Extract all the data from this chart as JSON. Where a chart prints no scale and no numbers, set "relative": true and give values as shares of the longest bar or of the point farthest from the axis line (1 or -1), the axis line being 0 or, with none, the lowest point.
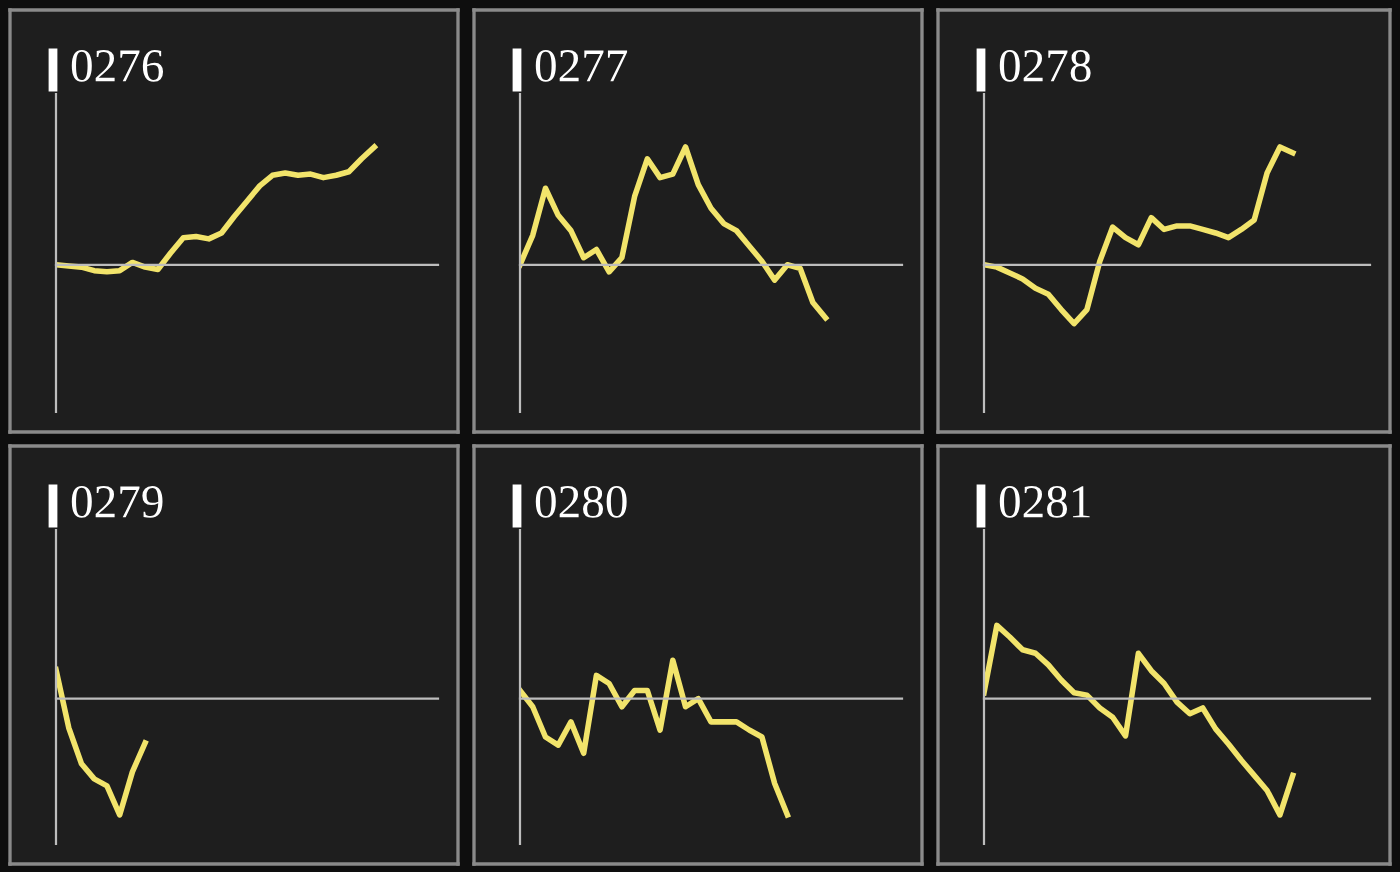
{
  "chart_data": [
    {
      "type": "line",
      "title": "0276",
      "relative": true,
      "marker": "none",
      "line_style": "solid",
      "categories": [
        null,
        null,
        null,
        null,
        null,
        null,
        null,
        null,
        null,
        null,
        null,
        null,
        null,
        null,
        null,
        null,
        null,
        null,
        null,
        null,
        null,
        null,
        null,
        null,
        null,
        null,
        null,
        null,
        null,
        null,
        null
      ],
      "series": [
        {
          "color": "#f2e46b",
          "values": [
            0,
            -0.01,
            -0.02,
            -0.05,
            -0.06,
            -0.05,
            0.02,
            -0.02,
            -0.04,
            0.1,
            0.23,
            0.24,
            0.22,
            0.27,
            0.41,
            0.54,
            0.67,
            0.76,
            0.78,
            0.76,
            0.77,
            0.74,
            0.76,
            0.79,
            0.9,
            1.0,
            null,
            null,
            null,
            null,
            null
          ]
        }
      ]
    },
    {
      "type": "line",
      "title": "0277",
      "relative": true,
      "marker": "none",
      "line_style": "solid",
      "categories": [
        null,
        null,
        null,
        null,
        null,
        null,
        null,
        null,
        null,
        null,
        null,
        null,
        null,
        null,
        null,
        null,
        null,
        null,
        null,
        null,
        null,
        null,
        null,
        null,
        null,
        null,
        null,
        null,
        null,
        null,
        null
      ],
      "series": [
        {
          "color": "#f2e46b",
          "values": [
            0,
            0.25,
            0.65,
            0.42,
            0.29,
            0.06,
            0.13,
            -0.06,
            0.06,
            0.58,
            0.9,
            0.74,
            0.77,
            1.0,
            0.68,
            0.48,
            0.35,
            0.29,
            0.16,
            0.03,
            -0.13,
            0,
            -0.03,
            -0.32,
            -0.45,
            null,
            null,
            null,
            null,
            null,
            null
          ]
        }
      ]
    },
    {
      "type": "line",
      "title": "0278",
      "relative": true,
      "marker": "none",
      "line_style": "solid",
      "categories": [
        null,
        null,
        null,
        null,
        null,
        null,
        null,
        null,
        null,
        null,
        null,
        null,
        null,
        null,
        null,
        null,
        null,
        null,
        null,
        null,
        null,
        null,
        null,
        null,
        null,
        null,
        null,
        null,
        null,
        null,
        null
      ],
      "series": [
        {
          "color": "#f2e46b",
          "values": [
            0,
            -0.02,
            -0.07,
            -0.12,
            -0.2,
            -0.25,
            -0.38,
            -0.5,
            -0.38,
            0.03,
            0.32,
            0.23,
            0.17,
            0.4,
            0.3,
            0.33,
            0.33,
            0.3,
            0.27,
            0.23,
            0.3,
            0.38,
            0.78,
            1.0,
            0.95,
            null,
            null,
            null,
            null,
            null,
            null
          ]
        }
      ]
    },
    {
      "type": "line",
      "title": "0279",
      "relative": true,
      "marker": "none",
      "line_style": "solid",
      "categories": [
        null,
        null,
        null,
        null,
        null,
        null,
        null,
        null,
        null,
        null,
        null,
        null,
        null,
        null,
        null,
        null,
        null,
        null,
        null,
        null,
        null,
        null,
        null,
        null,
        null,
        null,
        null,
        null,
        null,
        null,
        null
      ],
      "series": [
        {
          "color": "#f2e46b",
          "values": [
            0.25,
            -0.25,
            -0.56,
            -0.69,
            -0.75,
            -1.0,
            -0.63,
            -0.38,
            null,
            null,
            null,
            null,
            null,
            null,
            null,
            null,
            null,
            null,
            null,
            null,
            null,
            null,
            null,
            null,
            null,
            null,
            null,
            null,
            null,
            null,
            null
          ]
        }
      ]
    },
    {
      "type": "line",
      "title": "0280",
      "relative": true,
      "marker": "none",
      "line_style": "solid",
      "categories": [
        null,
        null,
        null,
        null,
        null,
        null,
        null,
        null,
        null,
        null,
        null,
        null,
        null,
        null,
        null,
        null,
        null,
        null,
        null,
        null,
        null,
        null,
        null,
        null,
        null,
        null,
        null,
        null,
        null,
        null,
        null
      ],
      "series": [
        {
          "color": "#f2e46b",
          "values": [
            0.07,
            -0.07,
            -0.33,
            -0.4,
            -0.2,
            -0.47,
            0.2,
            0.13,
            -0.07,
            0.07,
            0.07,
            -0.27,
            0.33,
            -0.07,
            0,
            -0.2,
            -0.2,
            -0.2,
            -0.27,
            -0.33,
            -0.73,
            -1.0,
            null,
            null,
            null,
            null,
            null,
            null,
            null,
            null,
            null
          ]
        }
      ]
    },
    {
      "type": "line",
      "title": "0281",
      "relative": true,
      "marker": "none",
      "line_style": "solid",
      "categories": [
        null,
        null,
        null,
        null,
        null,
        null,
        null,
        null,
        null,
        null,
        null,
        null,
        null,
        null,
        null,
        null,
        null,
        null,
        null,
        null,
        null,
        null,
        null,
        null,
        null,
        null,
        null,
        null,
        null,
        null,
        null
      ],
      "series": [
        {
          "color": "#f2e46b",
          "values": [
            0.05,
            0.63,
            0.53,
            0.42,
            0.39,
            0.29,
            0.16,
            0.05,
            0.03,
            -0.08,
            -0.16,
            -0.32,
            0.39,
            0.24,
            0.13,
            -0.03,
            -0.13,
            -0.08,
            -0.26,
            -0.39,
            -0.53,
            -0.66,
            -0.79,
            -1.0,
            -0.66,
            null,
            null,
            null,
            null,
            null,
            null
          ]
        }
      ]
    }
  ]
}
